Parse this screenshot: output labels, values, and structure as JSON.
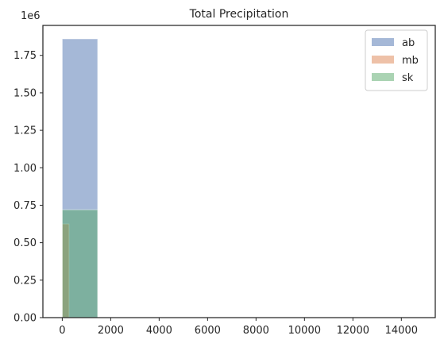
{
  "chart_data": {
    "type": "bar",
    "title": "Total Precipitation",
    "xlabel": "",
    "ylabel": "",
    "y_offset_label": "1e6",
    "xlim": [
      -800,
      15400
    ],
    "ylim": [
      0,
      1950000
    ],
    "x_ticks": [
      0,
      2000,
      4000,
      6000,
      8000,
      10000,
      12000,
      14000
    ],
    "x_tick_labels": [
      "0",
      "2000",
      "4000",
      "6000",
      "8000",
      "10000",
      "12000",
      "14000"
    ],
    "y_ticks": [
      0,
      250000,
      500000,
      750000,
      1000000,
      1250000,
      1500000,
      1750000
    ],
    "y_tick_labels": [
      "0.00",
      "0.25",
      "0.50",
      "0.75",
      "1.00",
      "1.25",
      "1.50",
      "1.75"
    ],
    "grid": false,
    "legend_position": "top-right",
    "series": [
      {
        "name": "ab",
        "color": "#4c72b0",
        "bins": [
          {
            "x0": 0,
            "x1": 1460,
            "value": 1860000
          }
        ]
      },
      {
        "name": "mb",
        "color": "#dd8452",
        "bins": [
          {
            "x0": 0,
            "x1": 280,
            "value": 625000
          }
        ]
      },
      {
        "name": "sk",
        "color": "#55a868",
        "bins": [
          {
            "x0": 0,
            "x1": 1460,
            "value": 720000
          }
        ]
      }
    ]
  }
}
